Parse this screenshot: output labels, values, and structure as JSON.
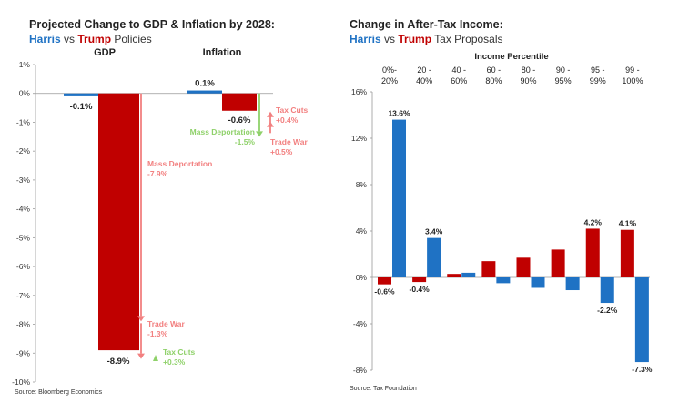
{
  "colors": {
    "harris": "#1f72c4",
    "trump": "#c00000",
    "trump_light": "#f28080",
    "green": "#8fd16a",
    "axis": "#999999"
  },
  "left": {
    "title": "Projected Change to GDP & Inflation by 2028:",
    "subtitle_harris": "Harris",
    "subtitle_vs": " vs ",
    "subtitle_trump": "Trump",
    "subtitle_rest": " Policies",
    "source": "Source: Bloomberg Economics"
  },
  "right": {
    "title": "Change in After-Tax Income:",
    "subtitle_harris": "Harris",
    "subtitle_vs": " vs ",
    "subtitle_trump": "Trump",
    "subtitle_rest": " Tax Proposals",
    "source": "Source: Tax Foundation"
  },
  "chart_data": [
    {
      "type": "bar",
      "title": "Projected Change to GDP & Inflation by 2028",
      "categories": [
        "GDP",
        "Inflation"
      ],
      "series": [
        {
          "name": "Harris",
          "values": [
            -0.1,
            0.1
          ]
        },
        {
          "name": "Trump",
          "values": [
            -8.9,
            -0.6
          ]
        }
      ],
      "data_labels": {
        "harris": [
          "-0.1%",
          "0.1%"
        ],
        "trump": [
          "-8.9%",
          "-0.6%"
        ]
      },
      "ylim": [
        -10,
        1
      ],
      "yticks": [
        1,
        0,
        -1,
        -2,
        -3,
        -4,
        -5,
        -6,
        -7,
        -8,
        -9,
        -10
      ],
      "ytick_labels": [
        "1%",
        "0%",
        "-1%",
        "-2%",
        "-3%",
        "-4%",
        "-5%",
        "-6%",
        "-7%",
        "-8%",
        "-9%",
        "-10%"
      ],
      "annotations": {
        "gdp": [
          {
            "name": "Mass Deportation",
            "value": "-7.9%",
            "delta": -7.9
          },
          {
            "name": "Trade War",
            "value": "-1.3%",
            "delta": -1.3
          },
          {
            "name": "Tax Cuts",
            "value": "+0.3%",
            "delta": 0.3
          }
        ],
        "inflation": [
          {
            "name": "Tax Cuts",
            "value": "+0.4%",
            "delta": 0.4
          },
          {
            "name": "Trade War",
            "value": "+0.5%",
            "delta": 0.5
          },
          {
            "name": "Mass Deportation",
            "value": "-1.5%",
            "delta": -1.5
          }
        ]
      }
    },
    {
      "type": "bar",
      "title": "Change in After-Tax Income",
      "xlabel": "Income Percentile",
      "categories": [
        [
          "0%-",
          "20%"
        ],
        [
          "20 -",
          "40%"
        ],
        [
          "40 -",
          "60%"
        ],
        [
          "60 -",
          "80%"
        ],
        [
          "80 -",
          "90%"
        ],
        [
          "90 -",
          "95%"
        ],
        [
          "95 -",
          "99%"
        ],
        [
          "99 -",
          "100%"
        ]
      ],
      "series": [
        {
          "name": "Trump",
          "values": [
            -0.6,
            -0.4,
            0.3,
            1.4,
            1.7,
            2.4,
            4.2,
            4.1
          ]
        },
        {
          "name": "Harris",
          "values": [
            13.6,
            3.4,
            0.4,
            -0.5,
            -0.9,
            -1.1,
            -2.2,
            -7.3
          ]
        }
      ],
      "data_labels": {
        "trump": [
          "-0.6%",
          "-0.4%",
          "",
          "",
          "",
          "",
          "4.2%",
          "4.1%"
        ],
        "harris": [
          "13.6%",
          "3.4%",
          "",
          "",
          "",
          "",
          "-2.2%",
          "-7.3%"
        ]
      },
      "ylim": [
        -8,
        16
      ],
      "yticks": [
        16,
        12,
        8,
        4,
        0,
        -4,
        -8
      ],
      "ytick_labels": [
        "16%",
        "12%",
        "8%",
        "4%",
        "0%",
        "-4%",
        "-8%"
      ]
    }
  ]
}
